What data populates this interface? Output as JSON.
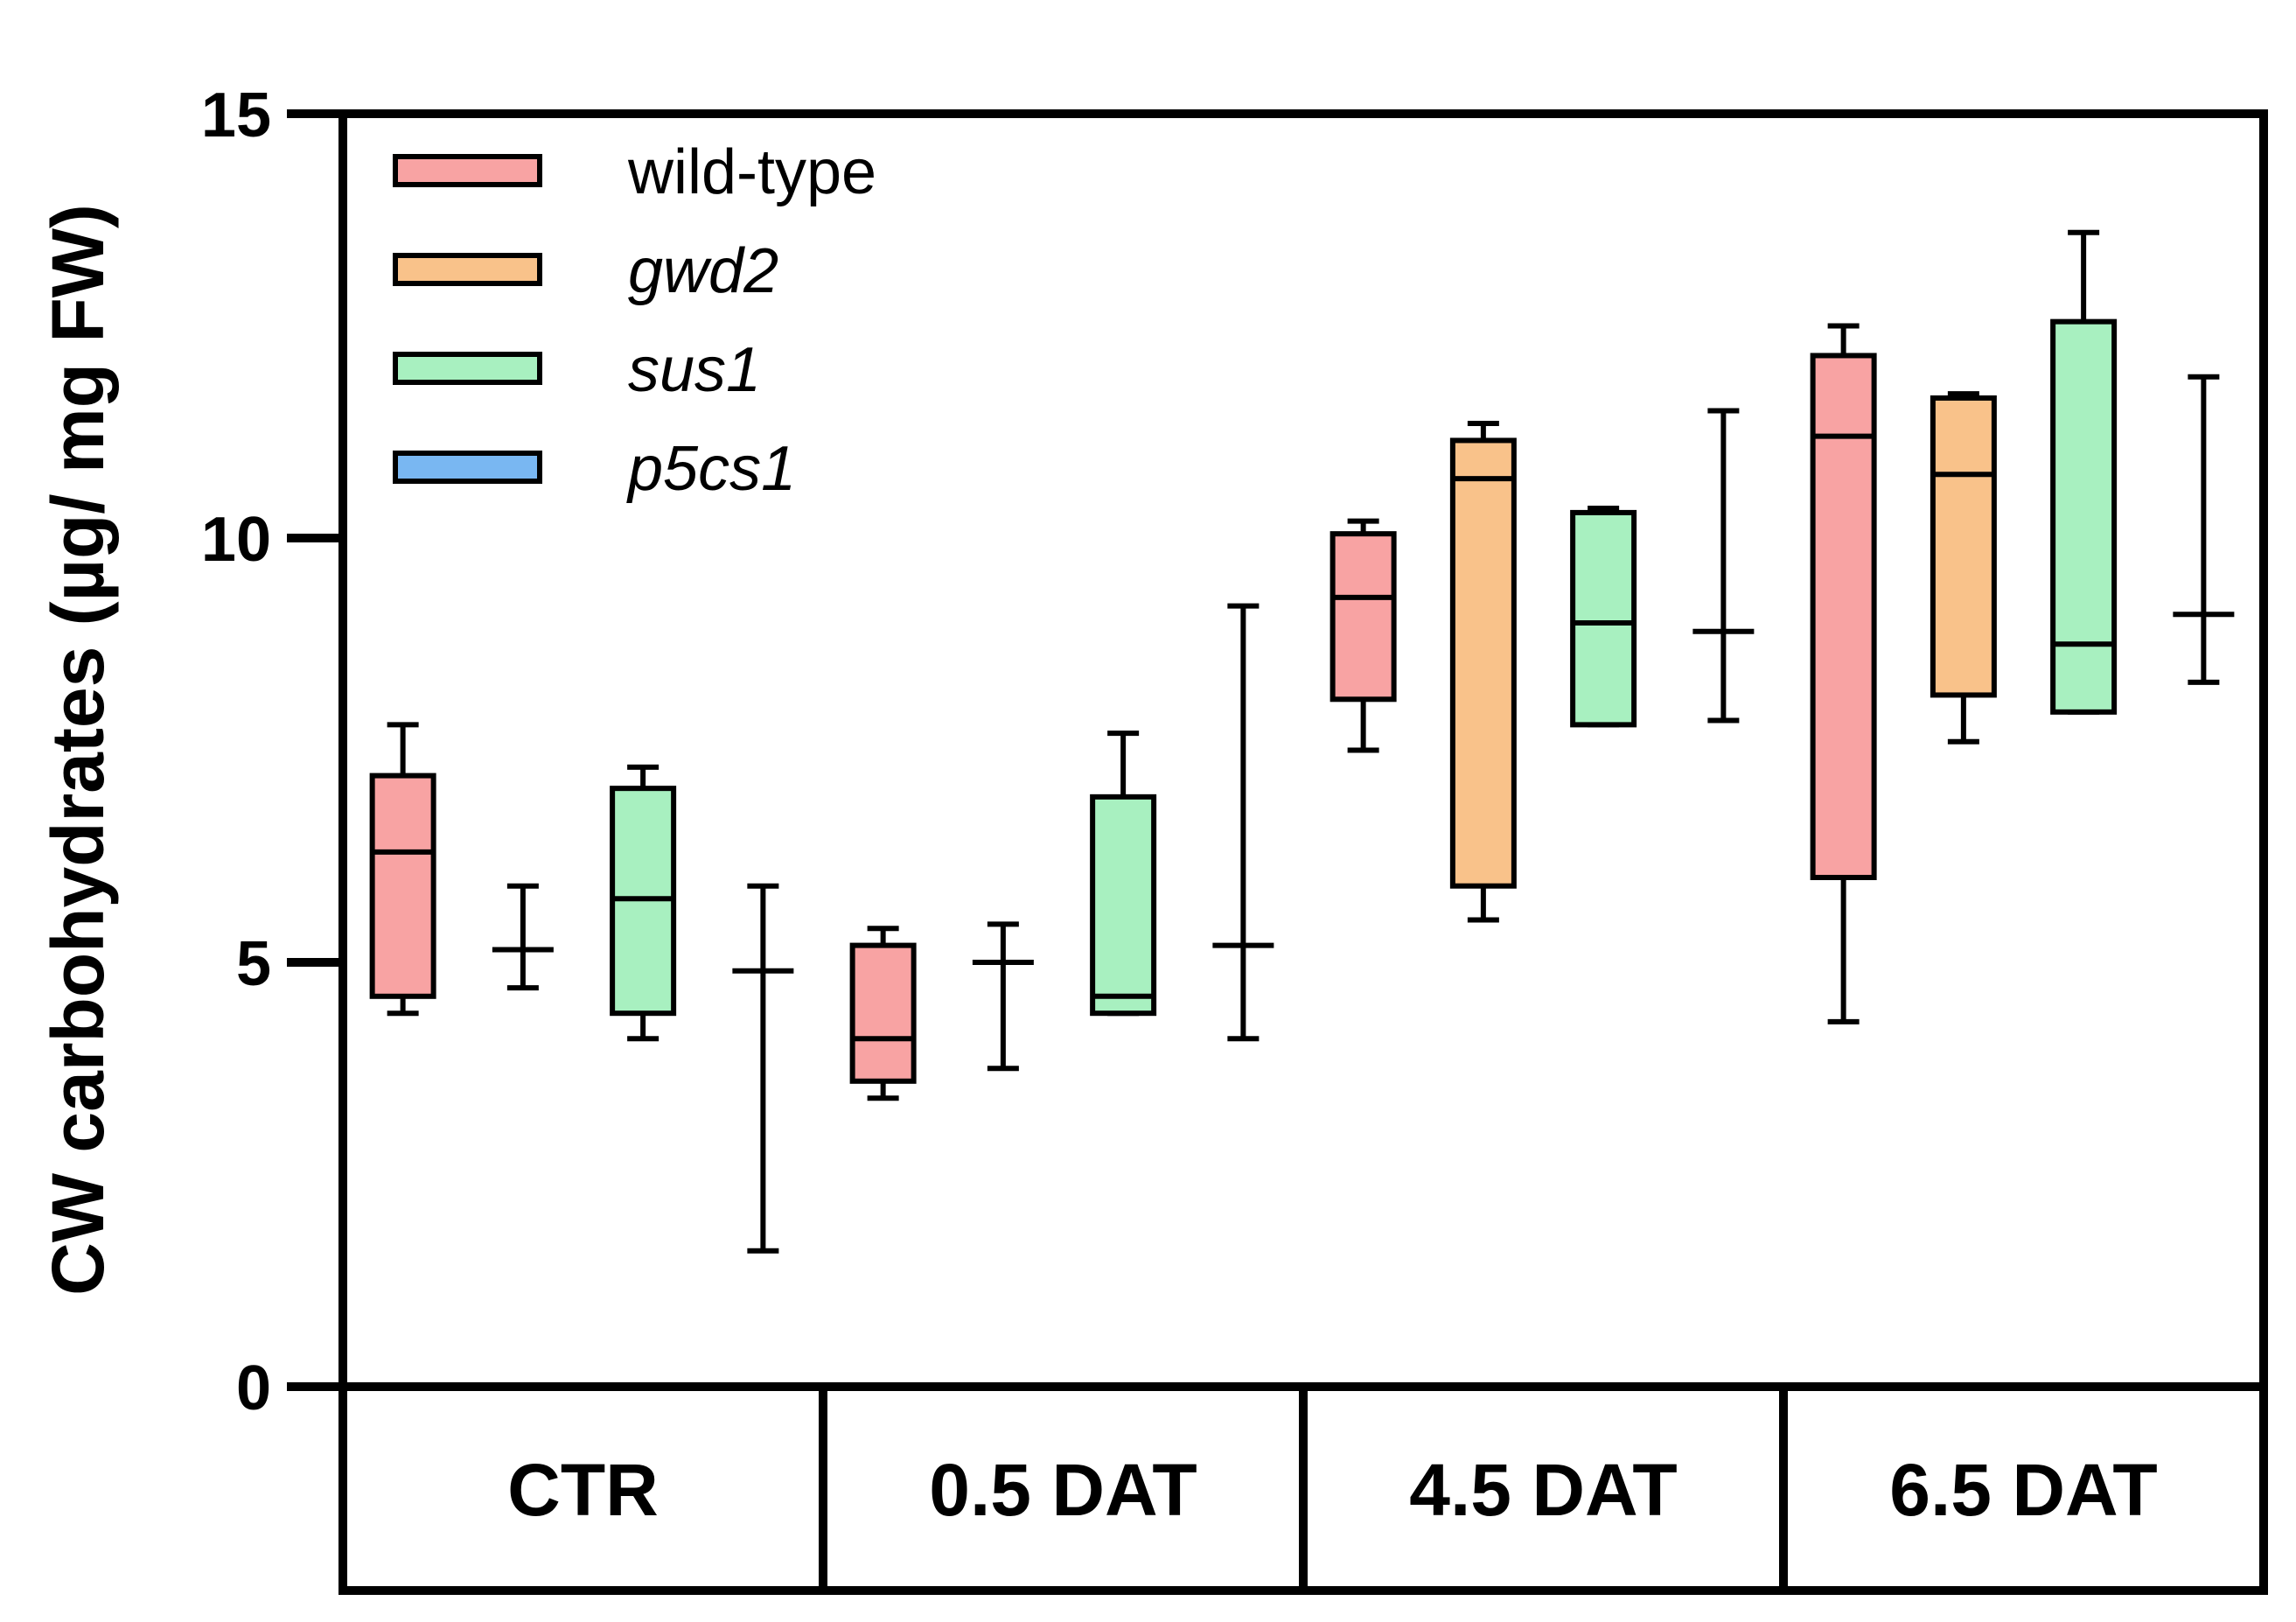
{
  "chart_data": {
    "type": "box",
    "title": "",
    "xlabel": "",
    "ylabel": "CW carbohydrates (µg/ mg FW)",
    "ylim": [
      0,
      15
    ],
    "yticks": [
      0,
      5,
      10,
      15
    ],
    "categories": [
      "CTR",
      "0.5 DAT",
      "4.5 DAT",
      "6.5 DAT"
    ],
    "legend_position": "top-left",
    "series": [
      {
        "name": "wild-type",
        "italic": false,
        "color": "#F8A3A3",
        "values": [
          {
            "min": 4.4,
            "q1": 4.6,
            "median": 6.3,
            "q3": 7.2,
            "max": 7.8
          },
          {
            "min": 3.4,
            "q1": 3.6,
            "median": 4.1,
            "q3": 5.2,
            "max": 5.4
          },
          {
            "min": 7.5,
            "q1": 8.1,
            "median": 9.3,
            "q3": 10.05,
            "max": 10.2
          },
          {
            "min": 4.3,
            "q1": 6.0,
            "median": 11.2,
            "q3": 12.15,
            "max": 12.5
          }
        ]
      },
      {
        "name": "gwd2",
        "italic": true,
        "color": "#F9C28A",
        "values": [
          {
            "min": 4.7,
            "q1": 5.15,
            "median": 5.15,
            "q3": 5.15,
            "max": 5.9
          },
          {
            "min": 3.75,
            "q1": 5.0,
            "median": 5.0,
            "q3": 5.0,
            "max": 5.45
          },
          {
            "min": 5.5,
            "q1": 5.9,
            "median": 10.7,
            "q3": 11.15,
            "max": 11.35
          },
          {
            "min": 7.6,
            "q1": 8.15,
            "median": 10.75,
            "q3": 11.65,
            "max": 11.7
          }
        ]
      },
      {
        "name": "sus1",
        "italic": true,
        "color": "#A8F0C0",
        "values": [
          {
            "min": 4.1,
            "q1": 4.4,
            "median": 5.75,
            "q3": 7.05,
            "max": 7.3
          },
          {
            "min": 4.4,
            "q1": 4.4,
            "median": 4.6,
            "q3": 6.95,
            "max": 7.7
          },
          {
            "min": 7.8,
            "q1": 7.8,
            "median": 9.0,
            "q3": 10.3,
            "max": 10.35
          },
          {
            "min": 7.95,
            "q1": 7.95,
            "median": 8.75,
            "q3": 12.55,
            "max": 13.6
          }
        ]
      },
      {
        "name": "p5cs1",
        "italic": true,
        "color": "#79B7F2",
        "values": [
          {
            "min": 1.6,
            "q1": 4.9,
            "median": 4.9,
            "q3": 4.9,
            "max": 5.9
          },
          {
            "min": 4.1,
            "q1": 5.2,
            "median": 5.2,
            "q3": 5.2,
            "max": 9.2
          },
          {
            "min": 7.85,
            "q1": 8.9,
            "median": 8.9,
            "q3": 8.9,
            "max": 11.5
          },
          {
            "min": 8.3,
            "q1": 9.1,
            "median": 9.1,
            "q3": 9.1,
            "max": 11.9
          }
        ]
      }
    ]
  }
}
